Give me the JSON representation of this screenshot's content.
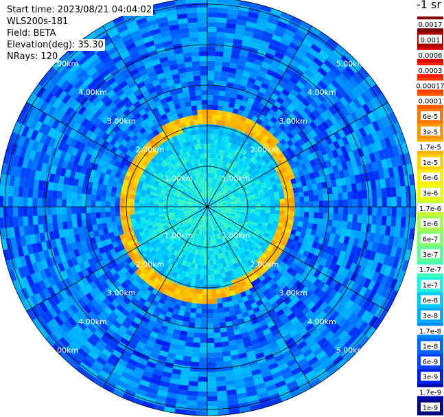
{
  "info": {
    "start_time": "Start time: 2023/08/21 04:04:02",
    "instrument": "WLS200s-181",
    "field": "Field: BETA",
    "elevation": "Elevation(deg): 35.30",
    "nrays": "NRays: 120"
  },
  "colorbar": {
    "title": "-1 sr",
    "labels": [
      "0.0017",
      "0.001",
      "0.0006",
      "0.0003",
      "0.00017",
      "0.0001",
      "6e-5",
      "3e-5",
      "1.7e-5",
      "1e-5",
      "6e-6",
      "3e-6",
      "1.7e-6",
      "1e-6",
      "6e-7",
      "3e-7",
      "1.7e-7",
      "1e-7",
      "6e-8",
      "3e-8",
      "1.7e-8",
      "1e-8",
      "6e-9",
      "3e-9",
      "1.7e-9",
      "1e-9"
    ],
    "colors": [
      "#7f0000",
      "#a80000",
      "#d60000",
      "#ff1e00",
      "#ff3d00",
      "#ff5a00",
      "#ff7800",
      "#ff9600",
      "#ffb400",
      "#ffd200",
      "#fff000",
      "#e8ff10",
      "#c8ff30",
      "#a8ff50",
      "#88ff70",
      "#60ff98",
      "#40ffb8",
      "#20f0e0",
      "#00c8ff",
      "#00a8ff",
      "#0088ff",
      "#0068ff",
      "#0040ff",
      "#0020e0",
      "#0000b0",
      "#000080"
    ]
  },
  "chart_data": {
    "type": "heatmap",
    "projection": "polar PPI",
    "range_rings_km": [
      1.0,
      2.0,
      3.0,
      4.0,
      5.0
    ],
    "ring_labels": [
      "1.00km",
      "2.00km",
      "3.00km",
      "4.00km",
      "5.00km"
    ],
    "n_rays": 120,
    "radial_lines": 12,
    "field": "BETA",
    "elevation_deg": 35.3,
    "max_range_km": 6.3,
    "features": {
      "near_field_beta": "1.7e-7",
      "ring_radius_km": 2.1,
      "ring_beta": "1e-5",
      "far_field_beta": "1.7e-8"
    }
  }
}
